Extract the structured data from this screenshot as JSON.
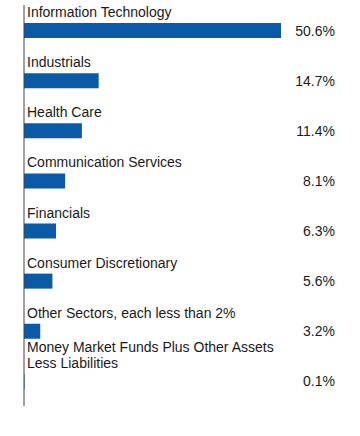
{
  "chart_data": {
    "type": "bar",
    "orientation": "horizontal",
    "categories": [
      "Information Technology",
      "Industrials",
      "Health Care",
      "Communication Services",
      "Financials",
      "Consumer Discretionary",
      "Other Sectors, each less than 2%",
      "Money Market Funds Plus Other Assets Less Liabilities"
    ],
    "values": [
      50.6,
      14.7,
      11.4,
      8.1,
      6.3,
      5.6,
      3.2,
      0.1
    ],
    "value_labels": [
      "50.6%",
      "14.7%",
      "11.4%",
      "8.1%",
      "6.3%",
      "5.6%",
      "3.2%",
      "0.1%"
    ],
    "color": "#0b5aa8",
    "data_labels": true,
    "tick_labels": "y"
  }
}
